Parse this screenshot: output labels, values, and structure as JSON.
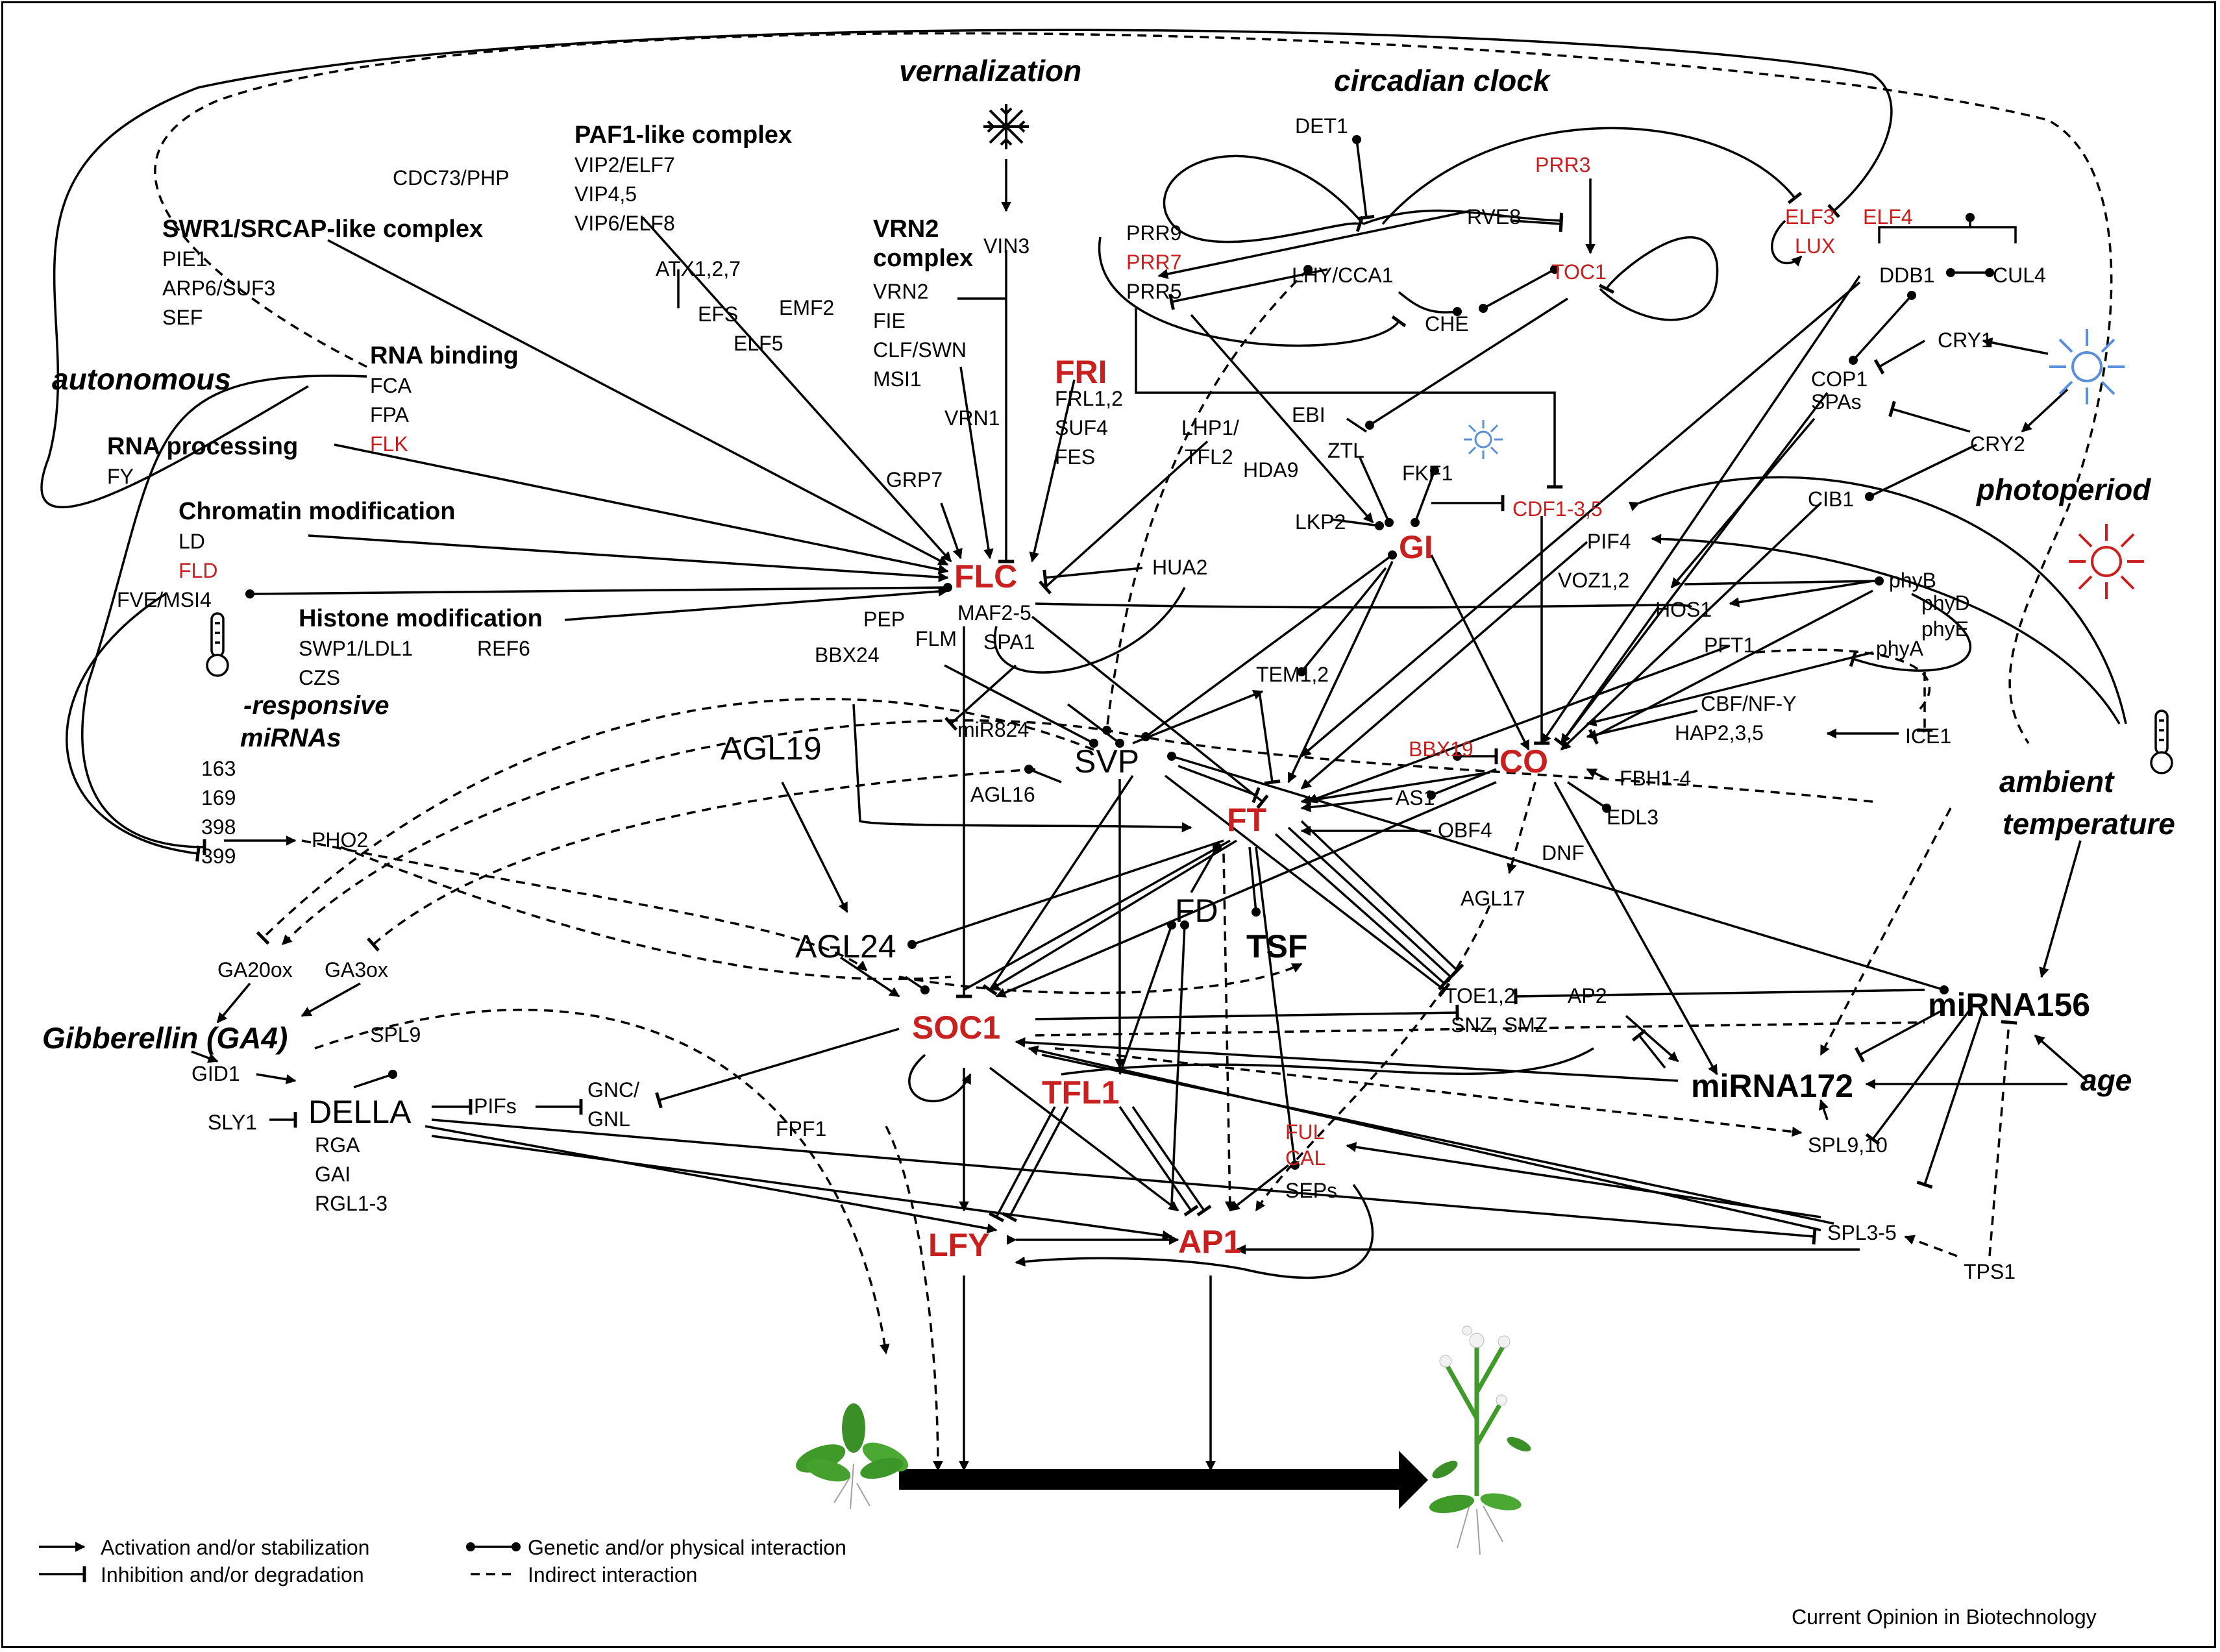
{
  "headings": {
    "vernalization": "vernalization",
    "circadian_clock": "circadian clock",
    "autonomous": "autonomous",
    "photoperiod": "photoperiod",
    "ambient_temperature_1": "ambient",
    "ambient_temperature_2": "temperature",
    "gibberellin": "Gibberellin (GA4)",
    "age": "age",
    "responsive": "-responsive",
    "mirnas": "miRNAs"
  },
  "nodes": {
    "paf1_complex": "PAF1-like complex",
    "cdc73": "CDC73/PHP",
    "vip2": "VIP2/ELF7",
    "vip4": "VIP4,5",
    "vip6": "VIP6/ELF8",
    "swr1_complex": "SWR1/SRCAP-like complex",
    "pie1": "PIE1",
    "arp6": "ARP6/SUF3",
    "sef": "SEF",
    "atx": "ATX1,2,7",
    "efs": "EFS",
    "elf5": "ELF5",
    "rna_binding": "RNA binding",
    "fca": "FCA",
    "fpa": "FPA",
    "flk": "FLK",
    "rna_processing": "RNA processing",
    "fy": "FY",
    "chromatin_modification": "Chromatin modification",
    "ld": "LD",
    "fld": "FLD",
    "fve": "FVE/MSI4",
    "histone_modification": "Histone modification",
    "swp1": "SWP1/LDL1",
    "ref6": "REF6",
    "czs": "CZS",
    "mir163": "163",
    "mir169": "169",
    "mir398": "398",
    "mir399": "399",
    "pho2": "PHO2",
    "vin3": "VIN3",
    "vrn2_complex_1": "VRN2",
    "vrn2_complex_2": "complex",
    "vrn2": "VRN2",
    "fie": "FIE",
    "clf": "CLF/SWN",
    "msi1": "MSI1",
    "emf2": "EMF2",
    "vrn1": "VRN1",
    "fri": "FRI",
    "frl": "FRL1,2",
    "suf4": "SUF4",
    "fes": "FES",
    "lhp1": "LHP1/",
    "tfl2": "TFL2",
    "hda9": "HDA9",
    "grp7": "GRP7",
    "flc": "FLC",
    "maf2": "MAF2-5",
    "spa1": "SPA1",
    "hua2": "HUA2",
    "pep": "PEP",
    "bbx24": "BBX24",
    "flm": "FLM",
    "det1": "DET1",
    "prr3": "PRR3",
    "prr9": "PRR9",
    "prr7": "PRR7",
    "prr5": "PRR5",
    "rve8": "RVE8",
    "lhy_cca1": "LHY/CCA1",
    "toc1": "TOC1",
    "che": "CHE",
    "ebi": "EBI",
    "ztl": "ZTL",
    "fkf1": "FKF1",
    "lkp2": "LKP2",
    "gi": "GI",
    "cdf1": "CDF1-3,5",
    "elf3": "ELF3",
    "elf4": "ELF4",
    "lux": "LUX",
    "ddb1": "DDB1",
    "cul4": "CUL4",
    "cry1": "CRY1",
    "cop1": "COP1",
    "spas": "SPAs",
    "cry2": "CRY2",
    "cib1": "CIB1",
    "pif4": "PIF4",
    "voz": "VOZ1,2",
    "phyb": "phyB",
    "hos1": "HOS1",
    "phyd": "phyD",
    "phye": "phyE",
    "pft1": "PFT1",
    "phya": "phyA",
    "cbf": "CBF/NF-Y",
    "hap2": "HAP2,3,5",
    "ice1": "ICE1",
    "fbh": "FBH1-4",
    "edl3": "EDL3",
    "dnf": "DNF",
    "co": "CO",
    "bbx19": "BBX19",
    "as1": "AS1",
    "obf4": "OBF4",
    "agl17": "AGL17",
    "tem": "TEM1,2",
    "svp": "SVP",
    "mir824": "miR824",
    "agl16": "AGL16",
    "agl19": "AGL19",
    "ft": "FT",
    "fd": "FD",
    "tsf": "TSF",
    "agl24": "AGL24",
    "soc1": "SOC1",
    "toe": "TOE1,2",
    "ap2": "AP2",
    "snz": "SNZ, SMZ",
    "mirna156": "miRNA156",
    "mirna172": "miRNA172",
    "spl9_10": "SPL9,10",
    "spl3_5": "SPL3-5",
    "tps1": "TPS1",
    "tfl1": "TFL1",
    "ful": "FUL",
    "cal": "CAL",
    "seps": "SEPs",
    "lfy": "LFY",
    "ap1": "AP1",
    "ga20ox": "GA20ox",
    "ga3ox": "GA3ox",
    "gid1": "GID1",
    "sly1": "SLY1",
    "spl9": "SPL9",
    "della": "DELLA",
    "rga": "RGA",
    "gai": "GAI",
    "rgl": "RGL1-3",
    "pifs": "PIFs",
    "gnc": "GNC/",
    "gnl": "GNL",
    "fpf1": "FPF1"
  },
  "legend": {
    "activation": "Activation and/or stabilization",
    "inhibition": "Inhibition and/or degradation",
    "interaction": "Genetic and/or physical interaction",
    "indirect": "Indirect interaction"
  },
  "credit": "Current Opinion in Biotechnology",
  "colors": {
    "highlight_red": "#c8201f",
    "blue_light": "#5b8fd8",
    "plant_green": "#3f9a2a"
  }
}
